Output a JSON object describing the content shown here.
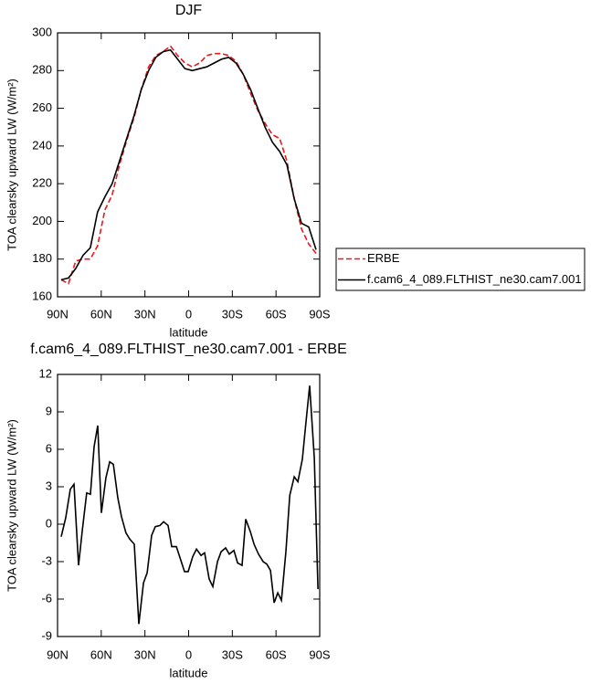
{
  "chart_data": [
    {
      "type": "line",
      "title": "DJF",
      "xlabel": "latitude",
      "ylabel": "TOA clearsky upward LW (W/m²)",
      "x": [
        87.5,
        82.5,
        77.5,
        72.5,
        67.5,
        62.5,
        57.5,
        52.5,
        47.5,
        42.5,
        37.5,
        32.5,
        27.5,
        22.5,
        17.5,
        12.5,
        7.5,
        2.5,
        -2.5,
        -7.5,
        -12.5,
        -17.5,
        -22.5,
        -27.5,
        -32.5,
        -37.5,
        -42.5,
        -47.5,
        -52.5,
        -57.5,
        -62.5,
        -67.5,
        -72.5,
        -77.5,
        -82.5,
        -87.5
      ],
      "series": [
        {
          "name": "ERBE",
          "color": "#e8191c",
          "dash": true,
          "values": [
            169,
            167,
            179,
            180,
            180,
            187,
            206,
            214,
            230,
            243,
            255,
            270,
            282,
            288,
            290,
            293,
            288,
            284,
            282,
            284,
            288,
            289,
            289,
            288,
            285,
            278,
            268,
            259,
            252,
            246,
            244,
            232,
            212,
            196,
            188,
            183
          ]
        },
        {
          "name": "f.cam6_4_089.FLTHIST_ne30.cam7.001",
          "color": "#000000",
          "dash": false,
          "values": [
            169,
            170,
            175,
            182,
            186,
            205,
            213,
            220,
            232,
            244,
            256,
            270,
            280,
            287,
            290,
            291,
            286,
            281,
            280,
            281,
            282,
            284,
            286,
            287,
            284,
            278,
            270,
            260,
            250,
            242,
            237,
            230,
            212,
            199,
            197,
            185
          ]
        }
      ],
      "xlim": [
        90,
        -90
      ],
      "xticks": [
        {
          "value": 90,
          "label": "90N"
        },
        {
          "value": 60,
          "label": "60N"
        },
        {
          "value": 30,
          "label": "30N"
        },
        0,
        {
          "value": -30,
          "label": "30S"
        },
        {
          "value": -60,
          "label": "60S"
        },
        {
          "value": -90,
          "label": "90S"
        }
      ],
      "ylim": [
        160,
        300
      ],
      "yticks": [
        160,
        180,
        200,
        220,
        240,
        260,
        280,
        300
      ],
      "legend": "right"
    },
    {
      "type": "line",
      "title": "f.cam6_4_089.FLTHIST_ne30.cam7.001 - ERBE",
      "xlabel": "latitude",
      "ylabel": "TOA clearsky upward LW (W/m²)",
      "x": [
        87.5,
        84.4,
        81.2,
        78.7,
        75.6,
        73,
        70,
        67.4,
        64.9,
        62.4,
        59.9,
        56.8,
        54.2,
        51.7,
        48.6,
        46.1,
        43,
        40.4,
        37.3,
        34.2,
        31,
        28.5,
        25.4,
        22.9,
        19.7,
        17.2,
        14.1,
        11.6,
        8.4,
        5.9,
        2.8,
        0.3,
        -2.8,
        -5.4,
        -8.5,
        -11,
        -14.1,
        -16.6,
        -19.8,
        -22.3,
        -25.4,
        -27.9,
        -31.1,
        -33.6,
        -36.7,
        -39.2,
        -42.4,
        -44.9,
        -48,
        -51.2,
        -53.7,
        -56.2,
        -58.7,
        -61.2,
        -63.7,
        -66.8,
        -69.4,
        -72.5,
        -75,
        -78.1,
        -80.6,
        -83.1,
        -86.3,
        -88.8
      ],
      "series": [
        {
          "color": "#000000",
          "values": [
            -1.0,
            0.5,
            2.8,
            3.2,
            -3.3,
            -0.5,
            2.5,
            2.4,
            6.2,
            7.9,
            0.9,
            3.7,
            5.0,
            4.8,
            2.1,
            0.6,
            -0.7,
            -1.2,
            -1.6,
            -8.0,
            -4.7,
            -3.9,
            -0.9,
            -0.2,
            -0.1,
            0.2,
            -0.1,
            -1.8,
            -1.8,
            -2.7,
            -3.8,
            -3.8,
            -2.6,
            -2.0,
            -2.5,
            -2.3,
            -4.4,
            -5.0,
            -3.0,
            -2.2,
            -1.9,
            -2.4,
            -2.1,
            -3.1,
            -3.3,
            0.4,
            -0.6,
            -1.6,
            -2.4,
            -3.0,
            -3.2,
            -3.7,
            -6.3,
            -5.5,
            -6.1,
            -2.2,
            2.3,
            3.8,
            3.4,
            5.2,
            8.2,
            11.1,
            5.3,
            -5.2
          ]
        }
      ],
      "xlim": [
        90,
        -90
      ],
      "xticks": [
        {
          "value": 90,
          "label": "90N"
        },
        {
          "value": 60,
          "label": "60N"
        },
        {
          "value": 30,
          "label": "30N"
        },
        0,
        {
          "value": -30,
          "label": "30S"
        },
        {
          "value": -60,
          "label": "60S"
        },
        {
          "value": -90,
          "label": "90S"
        }
      ],
      "ylim": [
        -9,
        12
      ],
      "yticks": [
        -9,
        -6,
        -3,
        0,
        3,
        6,
        9,
        12
      ]
    }
  ]
}
